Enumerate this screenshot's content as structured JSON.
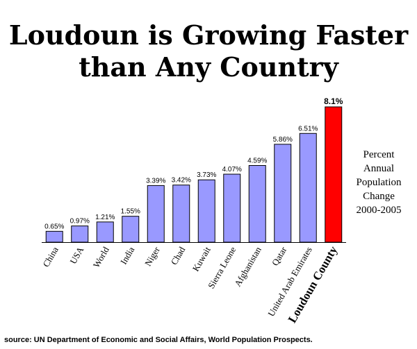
{
  "title_lines": [
    "Loudoun is Growing Faster",
    "than Any Country"
  ],
  "side_label_lines": [
    "Percent",
    "Annual",
    "Population",
    "Change",
    "2000-2005"
  ],
  "source": "source: UN Department of Economic and Social Affairs, World Population Prospects.",
  "colors": {
    "bar": "#9999ff",
    "highlight": "#ff0000"
  },
  "chart_data": {
    "type": "bar",
    "categories": [
      "China",
      "USA",
      "World",
      "India",
      "Niger",
      "Chad",
      "Kuwait",
      "Sierra Leone",
      "Afghanistan",
      "Qatar",
      "United Arab Emirates",
      "Loudoun County"
    ],
    "values": [
      0.65,
      0.97,
      1.21,
      1.55,
      3.39,
      3.42,
      3.73,
      4.07,
      4.59,
      5.86,
      6.51,
      8.1
    ],
    "value_labels": [
      "0.65%",
      "0.97%",
      "1.21%",
      "1.55%",
      "3.39%",
      "3.42%",
      "3.73%",
      "4.07%",
      "4.59%",
      "5.86%",
      "6.51%",
      "8.1%"
    ],
    "highlight_category": "Loudoun County",
    "ylim": [
      0,
      8.1
    ],
    "grid": false
  }
}
